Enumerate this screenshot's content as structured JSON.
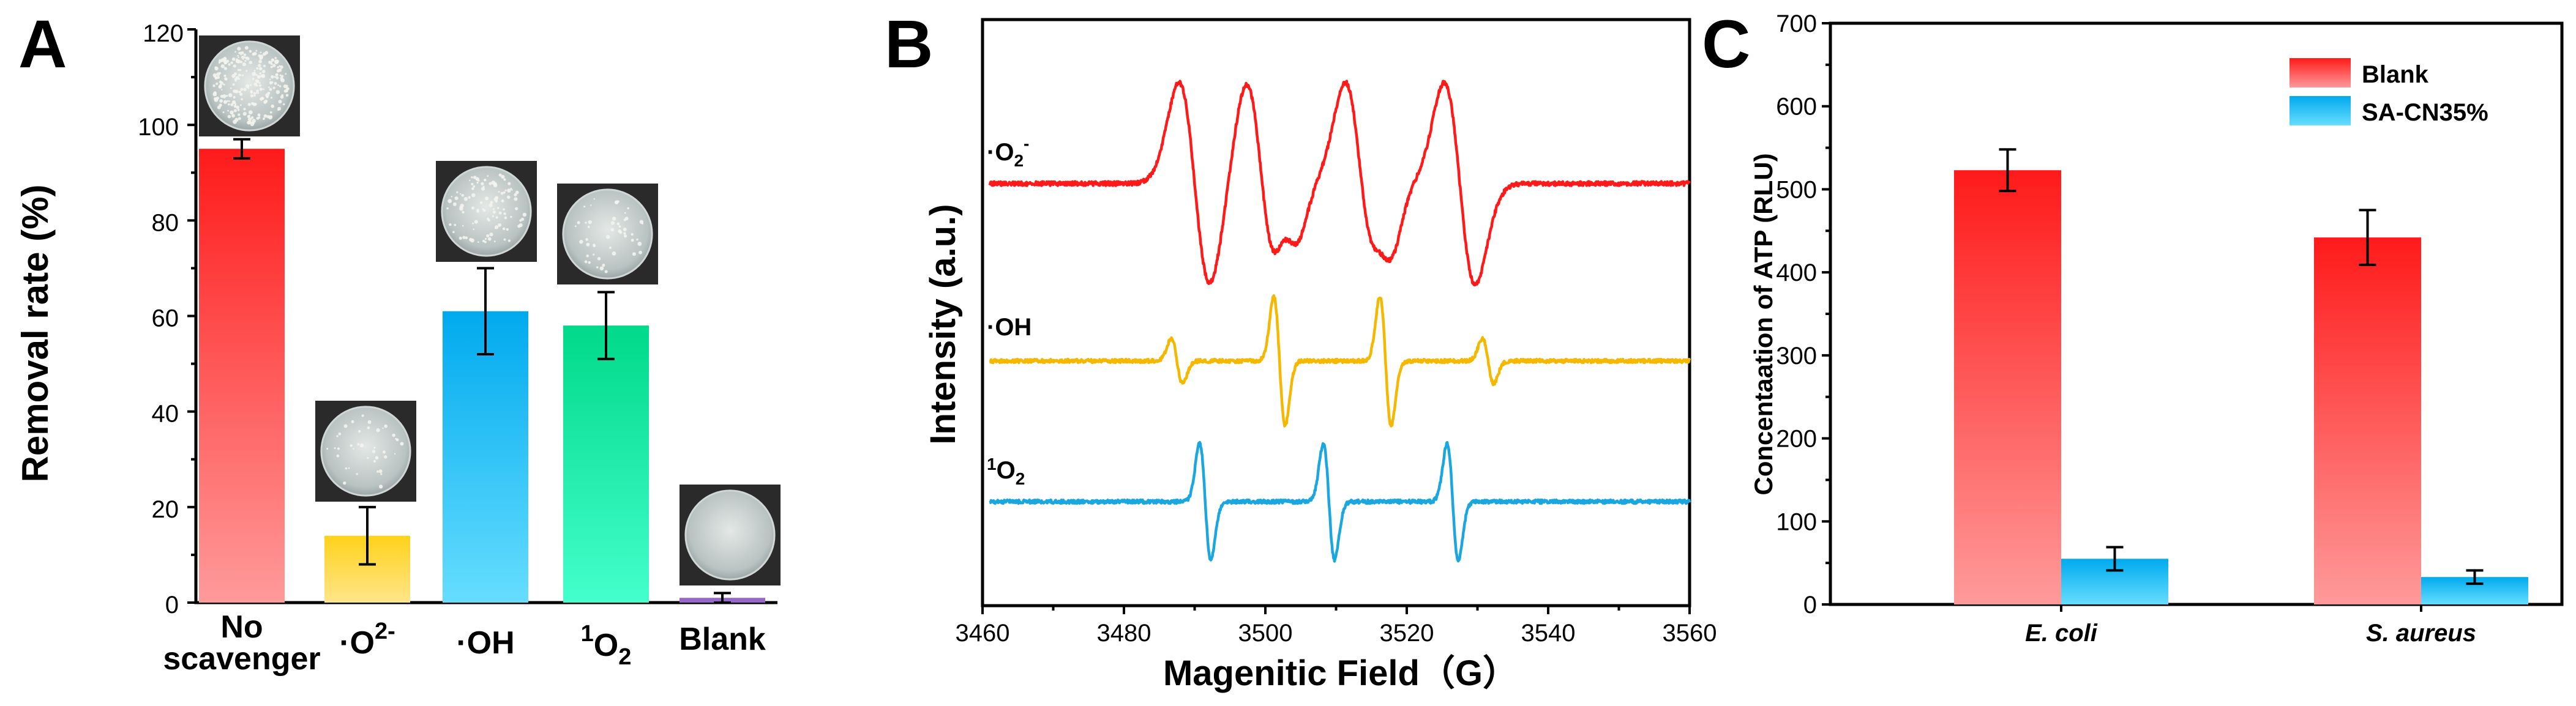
{
  "figure": {
    "colors": {
      "red_top": "#ff1a1a",
      "red_bottom": "#ff9a9a",
      "yellow_top": "#ffd21a",
      "yellow_bottom": "#ffe58a",
      "blue_top": "#00aaee",
      "blue_bottom": "#66ddff",
      "green_top": "#00d98a",
      "green_bottom": "#44ffcc",
      "purple": "#9966cc",
      "epr_red": "#ff1a1a",
      "epr_yellow": "#f5b800",
      "epr_blue": "#1aa7e0"
    }
  },
  "chart_data": [
    {
      "panel": "A",
      "type": "bar",
      "ylabel": "Removal rate (%)",
      "ylim": [
        0,
        120
      ],
      "yticks": [
        "0",
        "20",
        "40",
        "60",
        "80",
        "100",
        "120"
      ],
      "categories": [
        {
          "line1": "No",
          "line2": "scavenger"
        },
        {
          "base": "·O",
          "sup": "2-",
          "post": "",
          "pre": "",
          "sub": ""
        },
        {
          "base": "·OH"
        },
        {
          "pre": "1",
          "base": "O",
          "sub": "2"
        },
        {
          "base": "Blank"
        }
      ],
      "values": [
        95,
        14,
        61,
        58,
        1
      ],
      "errors": [
        2,
        6,
        9,
        7,
        1
      ],
      "plate_icons": [
        "dense-colonies-plate-icon",
        "sparse-colonies-plate-icon",
        "medium-colonies-plate-icon",
        "few-colonies-plate-icon",
        "clear-plate-icon"
      ]
    },
    {
      "panel": "B",
      "type": "line",
      "xlabel": "Magenitic Field（G）",
      "ylabel": "Intensity (a.u.)",
      "xlim": [
        3460,
        3560
      ],
      "xticks": [
        "3460",
        "3480",
        "3500",
        "3520",
        "3540",
        "3560"
      ],
      "series": [
        {
          "name": "·O2-",
          "label_base": "·O",
          "label_sub": "2",
          "label_sup": "-",
          "lines": [
            {
              "pos": 3490.0,
              "amp": 1.0,
              "w": 2.2
            },
            {
              "pos": 3499.5,
              "amp": 1.0,
              "w": 2.2
            },
            {
              "pos": 3503.5,
              "amp": 0.35,
              "w": 1.5
            },
            {
              "pos": 3513.5,
              "amp": 1.0,
              "w": 2.2
            },
            {
              "pos": 3517.0,
              "amp": 0.35,
              "w": 1.5
            },
            {
              "pos": 3527.5,
              "amp": 1.0,
              "w": 2.2
            }
          ]
        },
        {
          "name": "·OH",
          "label_base": "·OH",
          "lines": [
            {
              "pos": 3487.5,
              "amp": 0.35,
              "w": 0.8
            },
            {
              "pos": 3502.0,
              "amp": 1.0,
              "w": 0.8
            },
            {
              "pos": 3517.0,
              "amp": 1.0,
              "w": 0.8
            },
            {
              "pos": 3531.5,
              "amp": 0.35,
              "w": 0.8
            }
          ]
        },
        {
          "name": "1O2",
          "label_pre": "1",
          "label_base": "O",
          "label_sub": "2",
          "lines": [
            {
              "pos": 3491.5,
              "amp": 1.0,
              "w": 0.8
            },
            {
              "pos": 3509.0,
              "amp": 1.0,
              "w": 0.8
            },
            {
              "pos": 3526.5,
              "amp": 1.0,
              "w": 0.8
            }
          ]
        }
      ]
    },
    {
      "panel": "C",
      "type": "bar",
      "ylabel": "Concentaation of ATP (RLU)",
      "ylim": [
        0,
        700
      ],
      "yticks": [
        "0",
        "100",
        "200",
        "300",
        "400",
        "500",
        "600",
        "700"
      ],
      "categories": [
        "E. coli",
        "S. aureus"
      ],
      "series": [
        {
          "name": "Blank",
          "values": [
            523,
            442
          ],
          "errors": [
            25,
            33
          ]
        },
        {
          "name": "SA-CN35%",
          "values": [
            55,
            33
          ],
          "errors": [
            14,
            8
          ]
        }
      ],
      "legend_position": "top-right"
    }
  ]
}
